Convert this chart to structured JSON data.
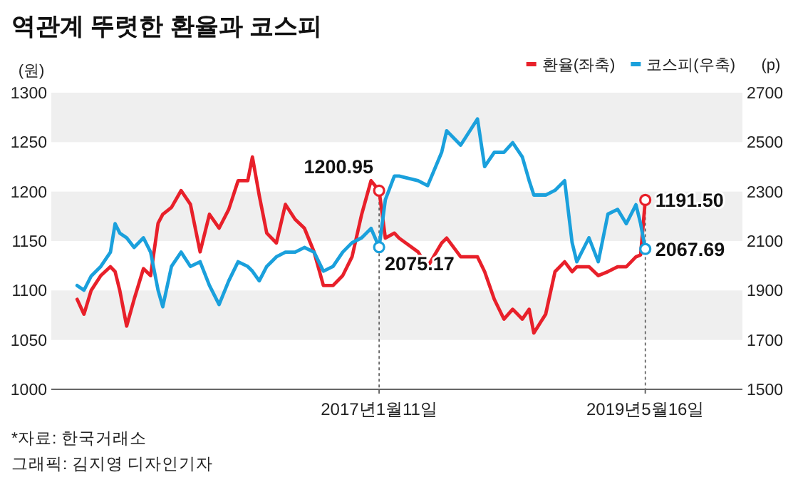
{
  "chart_data": {
    "type": "line",
    "title": "역관계 뚜렷한 환율과 코스피",
    "ylabel": "(원)",
    "y2label": "(p)",
    "annotations": [
      "*자료: 한국거래소",
      "그래픽: 김지영 디자인기자"
    ],
    "x": [
      "2014-05-17",
      "2014-06-08",
      "2014-07-01",
      "2014-08-01",
      "2014-09-01",
      "2014-09-16",
      "2014-10-01",
      "2014-10-23",
      "2014-11-16",
      "2014-12-16",
      "2015-01-08",
      "2015-02-01",
      "2015-02-16",
      "2015-03-16",
      "2015-04-16",
      "2015-05-16",
      "2015-06-16",
      "2015-07-16",
      "2015-08-16",
      "2015-09-16",
      "2015-10-16",
      "2015-11-16",
      "2015-12-01",
      "2015-12-23",
      "2016-01-16",
      "2016-02-16",
      "2016-03-16",
      "2016-04-16",
      "2016-05-16",
      "2016-06-16",
      "2016-07-16",
      "2016-08-16",
      "2016-09-16",
      "2016-10-16",
      "2016-11-16",
      "2016-12-16",
      "2017-01-11",
      "2017-01-31",
      "2017-03-01",
      "2017-03-16",
      "2017-05-16",
      "2017-06-16",
      "2017-07-31",
      "2017-08-16",
      "2017-09-30",
      "2017-11-23",
      "2017-12-16",
      "2018-01-16",
      "2018-02-16",
      "2018-03-16",
      "2018-04-16",
      "2018-05-08",
      "2018-05-23",
      "2018-06-30",
      "2018-07-30",
      "2018-08-30",
      "2018-09-23",
      "2018-10-08",
      "2018-11-16",
      "2018-12-16",
      "2019-01-16",
      "2019-02-16",
      "2019-03-16",
      "2019-04-16",
      "2019-05-01",
      "2019-05-16"
    ],
    "series": [
      {
        "name": "환율(좌축)",
        "color": "#e8202a",
        "values": [
          1091,
          1076,
          1100,
          1115,
          1124,
          1119,
          1100,
          1064,
          1091,
          1122,
          1115,
          1168,
          1177,
          1184,
          1201,
          1187,
          1139,
          1177,
          1163,
          1182,
          1211,
          1211,
          1235,
          1196,
          1158,
          1148,
          1187,
          1172,
          1163,
          1139,
          1105,
          1105,
          1115,
          1134,
          1177,
          1211,
          1200.95,
          1153,
          1158,
          1153,
          1139,
          1124,
          1148,
          1153,
          1134,
          1134,
          1119,
          1091,
          1071,
          1081,
          1071,
          1081,
          1057,
          1076,
          1119,
          1129,
          1119,
          1124,
          1124,
          1115,
          1119,
          1124,
          1124,
          1134,
          1136,
          1191.5
        ],
        "value_labels": [
          null,
          null,
          null,
          null,
          null,
          null,
          null,
          null,
          null,
          null,
          null,
          null,
          null,
          null,
          null,
          null,
          null,
          null,
          null,
          null,
          null,
          null,
          null,
          null,
          null,
          null,
          null,
          null,
          null,
          null,
          null,
          null,
          null,
          null,
          null,
          null,
          "1200.95",
          null,
          null,
          null,
          null,
          null,
          null,
          null,
          null,
          null,
          null,
          null,
          null,
          null,
          null,
          null,
          null,
          null,
          null,
          null,
          null,
          null,
          null,
          null,
          null,
          null,
          null,
          null,
          null,
          "1191.50"
        ]
      },
      {
        "name": "코스피(우축)",
        "color": "#1aa0dc",
        "axis": "y2",
        "values": [
          1920,
          1901,
          1958,
          1997,
          2055,
          2170,
          2132,
          2113,
          2074,
          2113,
          2055,
          1901,
          1834,
          1997,
          2055,
          1997,
          2016,
          1920,
          1843,
          1939,
          2016,
          1997,
          1978,
          1939,
          1997,
          2036,
          2055,
          2055,
          2074,
          2055,
          1978,
          1997,
          2055,
          2093,
          2113,
          2151,
          2075.17,
          2267,
          2363,
          2363,
          2344,
          2324,
          2459,
          2546,
          2488,
          2594,
          2401,
          2459,
          2459,
          2498,
          2440,
          2344,
          2286,
          2286,
          2305,
          2344,
          2093,
          2016,
          2113,
          2016,
          2209,
          2228,
          2170,
          2247,
          2170,
          2067.69
        ],
        "value_labels": [
          null,
          null,
          null,
          null,
          null,
          null,
          null,
          null,
          null,
          null,
          null,
          null,
          null,
          null,
          null,
          null,
          null,
          null,
          null,
          null,
          null,
          null,
          null,
          null,
          null,
          null,
          null,
          null,
          null,
          null,
          null,
          null,
          null,
          null,
          null,
          null,
          "2075.17",
          null,
          null,
          null,
          null,
          null,
          null,
          null,
          null,
          null,
          null,
          null,
          null,
          null,
          null,
          null,
          null,
          null,
          null,
          null,
          null,
          null,
          null,
          null,
          null,
          null,
          null,
          null,
          null,
          "2067.69"
        ]
      }
    ],
    "xlim": [
      "2014-02-23",
      "2020-03-23"
    ],
    "xticks": [
      {
        "value": "2017-01-11",
        "label": "2017년1월11일"
      },
      {
        "value": "2019-05-16",
        "label": "2019년5월16일"
      }
    ],
    "ylim": [
      1000,
      1300
    ],
    "yticks": [
      1000,
      1050,
      1100,
      1150,
      1200,
      1250,
      1300
    ],
    "y2lim": [
      1500,
      2700
    ],
    "y2ticks": [
      1500,
      1700,
      1900,
      2100,
      2300,
      2500,
      2700
    ],
    "bands": [
      {
        "axis": "y",
        "from": 1250,
        "to": 1300,
        "color": "#efefef"
      },
      {
        "axis": "y",
        "from": 1150,
        "to": 1200,
        "color": "#efefef"
      },
      {
        "axis": "y",
        "from": 1050,
        "to": 1100,
        "color": "#efefef"
      }
    ],
    "ref_lines": [
      {
        "axis": "x",
        "value": "2017-01-11",
        "color": "#555555",
        "line_style": "dotted"
      },
      {
        "axis": "x",
        "value": "2019-05-16",
        "color": "#555555",
        "line_style": "dotted"
      }
    ],
    "legend": "top right"
  }
}
